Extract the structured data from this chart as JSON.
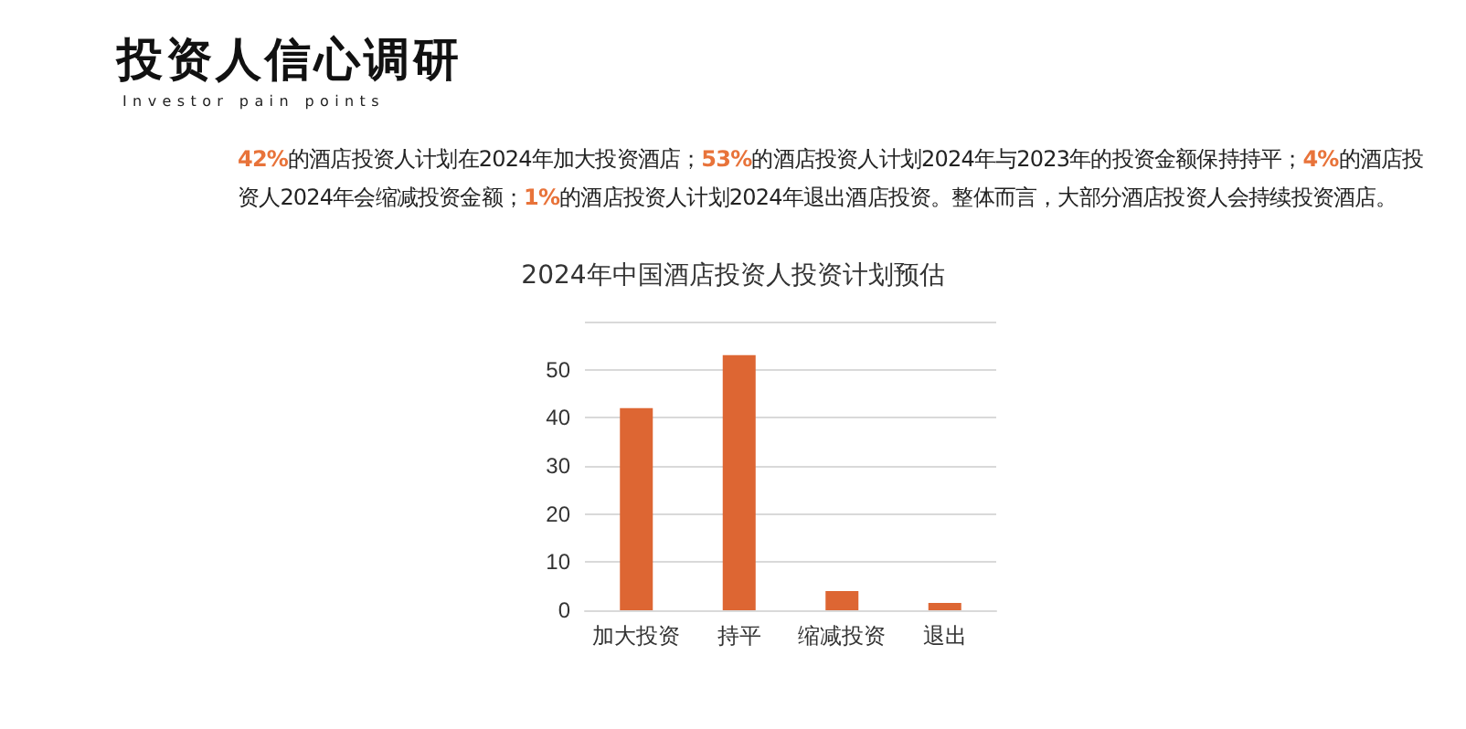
{
  "chart_data": {
    "type": "bar",
    "title": "投资人信心调研",
    "subtitle": "Investor pain points",
    "annotations": [
      "42%的酒店投资人计划在2024年加大投资酒店；53%的酒店投资人计划2024年与2023年的投资金额保持持平；4%的酒店投资人2024年会缩减投资金额；1%的酒店投资人计划2024年退出酒店投资。整体而言，大部分酒店投资人会持续投资酒店。",
      "2024年中国酒店投资人投资计划预估"
    ],
    "categories": [
      "加大投资",
      "持平",
      "缩减投资",
      "退出"
    ],
    "values": [
      42,
      53,
      4,
      1.5
    ],
    "color": "#dd6633",
    "ylim": [
      0,
      60
    ],
    "yticks": [
      0,
      10,
      20,
      30,
      40,
      50,
      {
        "value": 60,
        "label": null
      }
    ],
    "grid": "y"
  }
}
